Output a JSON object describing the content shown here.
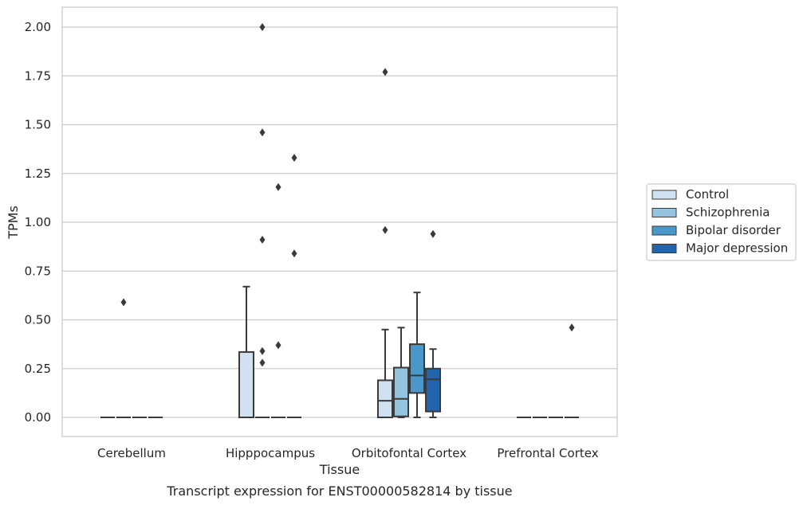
{
  "chart_data": {
    "type": "box",
    "xlabel": "Tissue",
    "ylabel": "TPMs",
    "caption": "Transcript expression for ENST00000582814 by tissue",
    "ylim": [
      -0.1,
      2.1
    ],
    "yticks": [
      "0.00",
      "0.25",
      "0.50",
      "0.75",
      "1.00",
      "1.25",
      "1.50",
      "1.75",
      "2.00"
    ],
    "grid": true,
    "legend_position": "right",
    "categories": [
      "Cerebellum",
      "Hipppocampus",
      "Orbitofontal Cortex",
      "Prefrontal Cortex"
    ],
    "series": [
      {
        "name": "Control",
        "color": "#d0e1f2",
        "boxes": [
          {
            "q1": 0,
            "median": 0,
            "q3": 0,
            "whislo": 0,
            "whishi": 0,
            "fliers": []
          },
          {
            "q1": 0,
            "median": 0,
            "q3": 0.335,
            "whislo": 0,
            "whishi": 0.67,
            "fliers": []
          },
          {
            "q1": 0,
            "median": 0.085,
            "q3": 0.19,
            "whislo": 0,
            "whishi": 0.45,
            "fliers": [
              0.96,
              1.77
            ]
          },
          {
            "q1": 0,
            "median": 0,
            "q3": 0,
            "whislo": 0,
            "whishi": 0,
            "fliers": []
          }
        ]
      },
      {
        "name": "Schizophrenia",
        "color": "#94c4df",
        "boxes": [
          {
            "q1": 0,
            "median": 0,
            "q3": 0,
            "whislo": 0,
            "whishi": 0,
            "fliers": [
              0.59
            ]
          },
          {
            "q1": 0,
            "median": 0,
            "q3": 0,
            "whislo": 0,
            "whishi": 0,
            "fliers": [
              0.28,
              0.34,
              0.91,
              1.46,
              2.0
            ]
          },
          {
            "q1": 0.005,
            "median": 0.095,
            "q3": 0.255,
            "whislo": 0,
            "whishi": 0.46,
            "fliers": []
          },
          {
            "q1": 0,
            "median": 0,
            "q3": 0,
            "whislo": 0,
            "whishi": 0,
            "fliers": []
          }
        ]
      },
      {
        "name": "Bipolar disorder",
        "color": "#4a98c9",
        "boxes": [
          {
            "q1": 0,
            "median": 0,
            "q3": 0,
            "whislo": 0,
            "whishi": 0,
            "fliers": []
          },
          {
            "q1": 0,
            "median": 0,
            "q3": 0,
            "whislo": 0,
            "whishi": 0,
            "fliers": [
              0.37,
              1.18
            ]
          },
          {
            "q1": 0.125,
            "median": 0.215,
            "q3": 0.375,
            "whislo": 0,
            "whishi": 0.64,
            "fliers": []
          },
          {
            "q1": 0,
            "median": 0,
            "q3": 0,
            "whislo": 0,
            "whishi": 0,
            "fliers": []
          }
        ]
      },
      {
        "name": "Major depression",
        "color": "#2164ab",
        "boxes": [
          {
            "q1": 0,
            "median": 0,
            "q3": 0,
            "whislo": 0,
            "whishi": 0,
            "fliers": []
          },
          {
            "q1": 0,
            "median": 0,
            "q3": 0,
            "whislo": 0,
            "whishi": 0,
            "fliers": [
              0.84,
              1.33
            ]
          },
          {
            "q1": 0.03,
            "median": 0.195,
            "q3": 0.25,
            "whislo": 0,
            "whishi": 0.35,
            "fliers": [
              0.94
            ]
          },
          {
            "q1": 0,
            "median": 0,
            "q3": 0,
            "whislo": 0,
            "whishi": 0,
            "fliers": [
              0.46
            ]
          }
        ]
      }
    ]
  }
}
